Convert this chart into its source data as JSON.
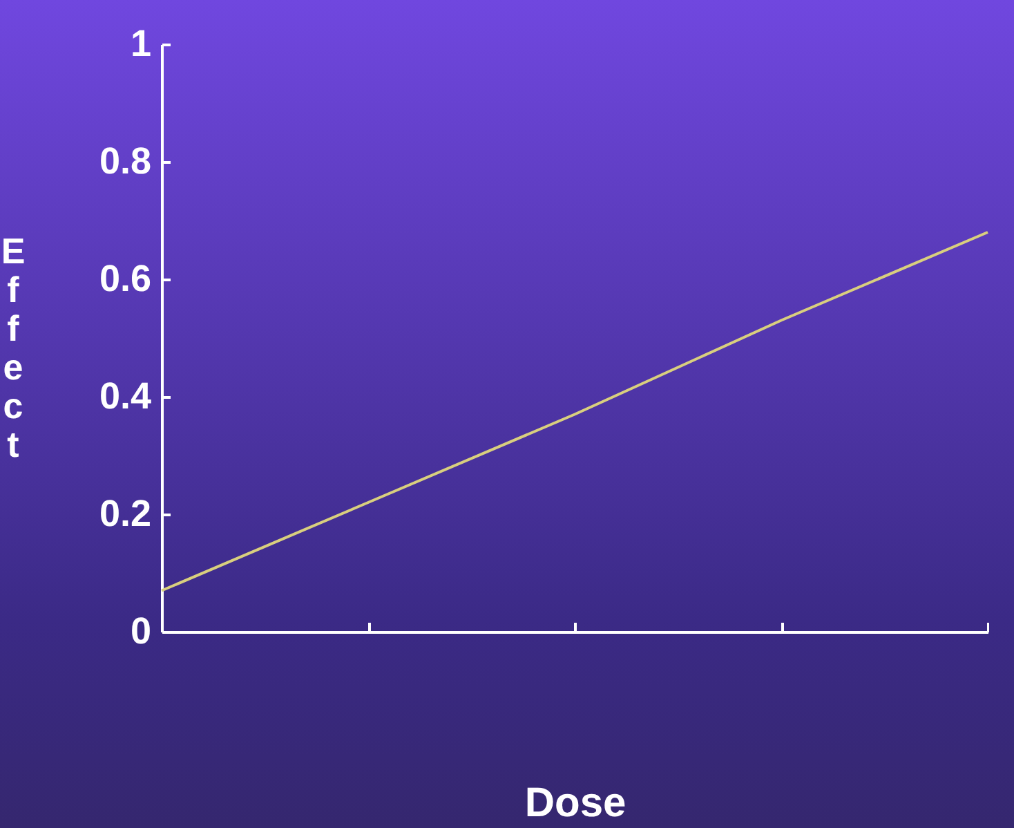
{
  "chart_data": {
    "type": "line",
    "xlabel": "Dose",
    "ylabel": "Effect",
    "categories": [
      null,
      null,
      null,
      null,
      null
    ],
    "series": [
      {
        "color": "#d9cf7e",
        "values": [
          0.07,
          0.22,
          0.37,
          0.53,
          0.68
        ]
      }
    ],
    "ylim": [
      0,
      1
    ],
    "yticks": [
      0,
      0.2,
      0.4,
      0.6,
      0.8,
      1
    ],
    "grid": false,
    "legend": false,
    "tick_labels": "y",
    "marker": "none",
    "line_style": "solid"
  }
}
